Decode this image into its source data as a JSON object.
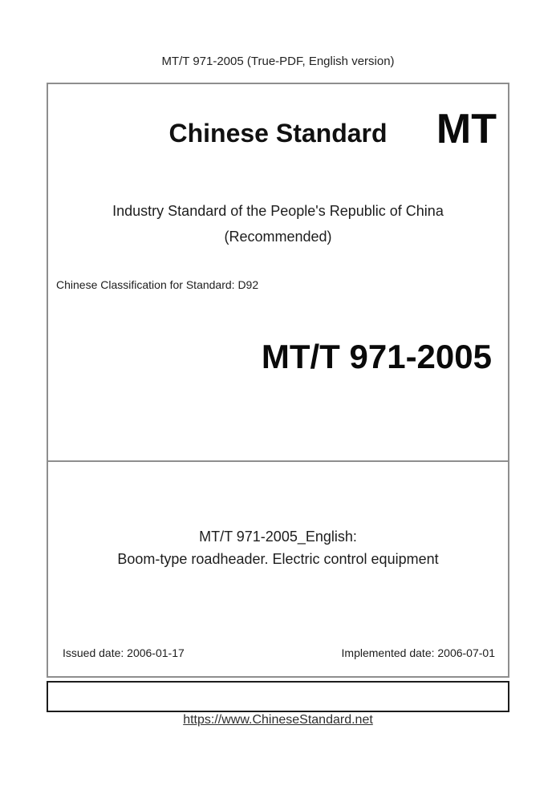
{
  "page": {
    "header": "MT/T 971-2005 (True-PDF, English version)",
    "footer_link": "https://www.ChineseStandard.net"
  },
  "cover": {
    "brand_title": "Chinese Standard",
    "brand_code": "MT",
    "org_line1": "Industry Standard of the People's Republic of China",
    "org_line2": "(Recommended)",
    "classification": "Chinese Classification for Standard: D92",
    "standard_number": "MT/T 971-2005",
    "english_title_line1": "MT/T 971-2005_English:",
    "english_title_line2": "Boom-type roadheader. Electric control equipment",
    "issued_date": "Issued date: 2006-01-17",
    "implemented_date": "Implemented date: 2006-07-01"
  },
  "colors": {
    "border_gray": "#8e8e8e",
    "border_dark": "#1c1c1c",
    "text": "#1d1d1d"
  }
}
